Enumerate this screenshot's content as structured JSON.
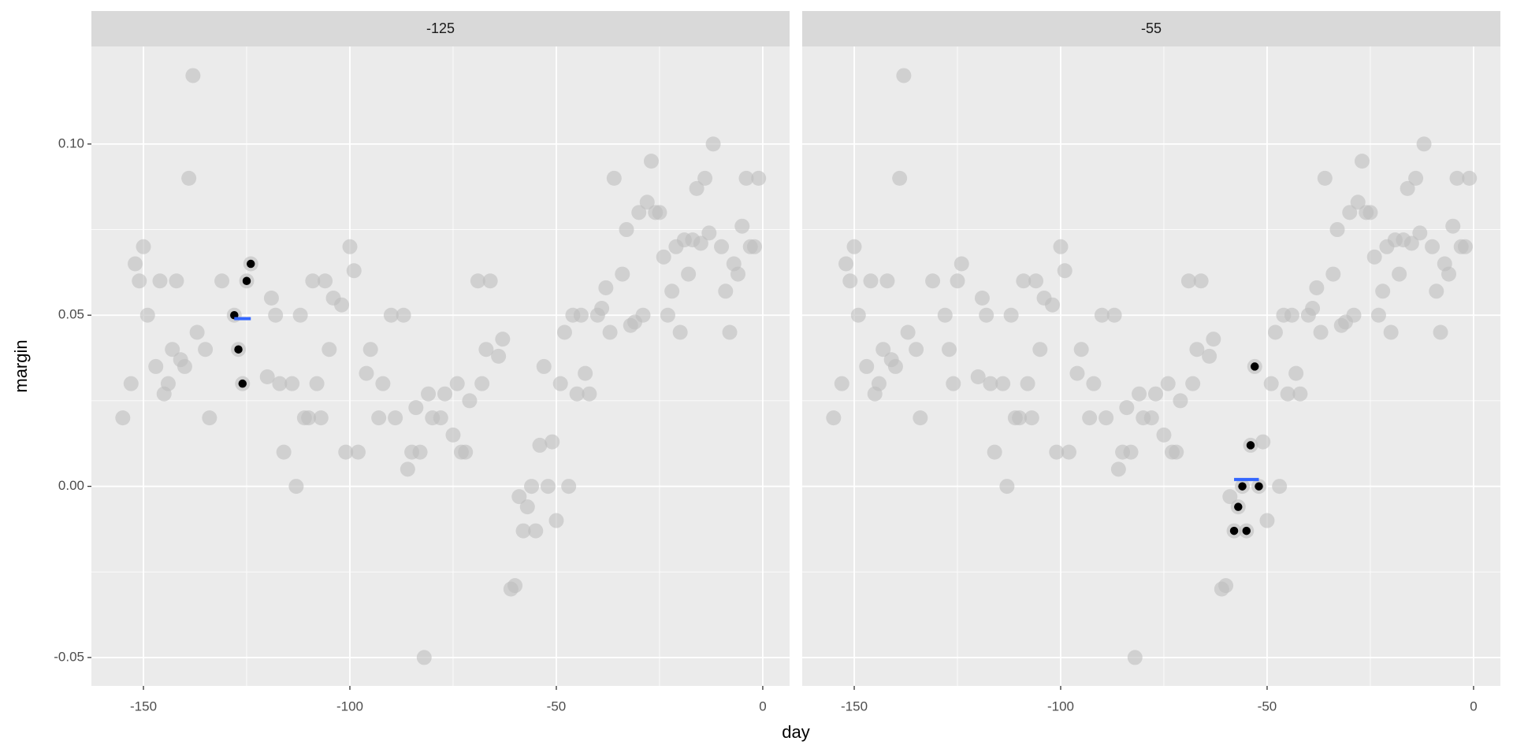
{
  "chart_data": {
    "type": "scatter",
    "xlabel": "day",
    "ylabel": "margin",
    "xlim": [
      -162.6,
      6.5
    ],
    "ylim": [
      -0.0583,
      0.1285
    ],
    "xticks": [
      -150,
      -100,
      -50,
      0
    ],
    "yticks": [
      {
        "value": -0.05,
        "label": "-0.05"
      },
      {
        "value": 0,
        "label": "0.00"
      },
      {
        "value": 0.05,
        "label": "0.05"
      },
      {
        "value": 0.1,
        "label": "0.10"
      }
    ],
    "grid": true,
    "color": "#bebebe",
    "alpha": 0.6,
    "highlight_color": "#000000",
    "mean_color": "#3366ff",
    "x": [
      -155,
      -153,
      -152,
      -151,
      -150,
      -149,
      -147,
      -146,
      -145,
      -144,
      -143,
      -142,
      -141,
      -140,
      -139,
      -138,
      -137,
      -135,
      -134,
      -131,
      -128,
      -127,
      -126,
      -125,
      -124,
      -120,
      -119,
      -118,
      -117,
      -116,
      -114,
      -113,
      -112,
      -111,
      -110,
      -109,
      -108,
      -107,
      -106,
      -105,
      -104,
      -102,
      -101,
      -100,
      -99,
      -98,
      -96,
      -95,
      -93,
      -92,
      -90,
      -89,
      -87,
      -86,
      -85,
      -84,
      -83,
      -82,
      -81,
      -80,
      -78,
      -77,
      -75,
      -74,
      -73,
      -72,
      -71,
      -69,
      -68,
      -67,
      -66,
      -64,
      -63,
      -61,
      -60,
      -59,
      -58,
      -57,
      -56,
      -55,
      -54,
      -53,
      -52,
      -51,
      -50,
      -49,
      -48,
      -47,
      -46,
      -45,
      -44,
      -43,
      -42,
      -40,
      -39,
      -38,
      -37,
      -36,
      -34,
      -33,
      -32,
      -31,
      -30,
      -29,
      -28,
      -27,
      -26,
      -25,
      -24,
      -23,
      -22,
      -21,
      -20,
      -19,
      -18,
      -17,
      -16,
      -15,
      -14,
      -13,
      -12,
      -10,
      -9,
      -8,
      -7,
      -6,
      -5,
      -4,
      -3,
      -2,
      -1
    ],
    "y": [
      0.02,
      0.03,
      0.065,
      0.06,
      0.07,
      0.05,
      0.035,
      0.06,
      0.027,
      0.03,
      0.04,
      0.06,
      0.037,
      0.035,
      0.09,
      0.12,
      0.045,
      0.04,
      0.02,
      0.06,
      0.05,
      0.04,
      0.03,
      0.06,
      0.065,
      0.032,
      0.055,
      0.05,
      0.03,
      0.01,
      0.03,
      0,
      0.05,
      0.02,
      0.02,
      0.06,
      0.03,
      0.02,
      0.06,
      0.04,
      0.055,
      0.053,
      0.01,
      0.07,
      0.063,
      0.01,
      0.033,
      0.04,
      0.02,
      0.03,
      0.05,
      0.02,
      0.05,
      0.005,
      0.01,
      0.023,
      0.01,
      -0.05,
      0.027,
      0.02,
      0.02,
      0.027,
      0.015,
      0.03,
      0.01,
      0.01,
      0.025,
      0.06,
      0.03,
      0.04,
      0.06,
      0.038,
      0.043,
      -0.03,
      -0.029,
      -0.003,
      -0.013,
      -0.006,
      0,
      -0.013,
      0.012,
      0.035,
      0,
      0.013,
      -0.01,
      0.03,
      0.045,
      0,
      0.05,
      0.027,
      0.05,
      0.033,
      0.027,
      0.05,
      0.052,
      0.058,
      0.045,
      0.09,
      0.062,
      0.075,
      0.047,
      0.048,
      0.08,
      0.05,
      0.083,
      0.095,
      0.08,
      0.08,
      0.067,
      0.05,
      0.057,
      0.07,
      0.045,
      0.072,
      0.062,
      0.072,
      0.087,
      0.071,
      0.09,
      0.074,
      0.1,
      0.07,
      0.057,
      0.045,
      0.065,
      0.062,
      0.076,
      0.09,
      0.07,
      0.07,
      0.09
    ],
    "facets": [
      {
        "title": "-125",
        "x": [
          -128,
          -127,
          -126,
          -125,
          -124
        ],
        "y": [
          0.05,
          0.04,
          0.03,
          0.06,
          0.065
        ],
        "mean": 0.049
      },
      {
        "title": "-55",
        "x": [
          -58,
          -57,
          -56,
          -55,
          -54,
          -53,
          -52
        ],
        "y": [
          -0.013,
          -0.006,
          0,
          -0.013,
          0.012,
          0.035,
          0
        ],
        "mean": 0.002
      }
    ]
  }
}
